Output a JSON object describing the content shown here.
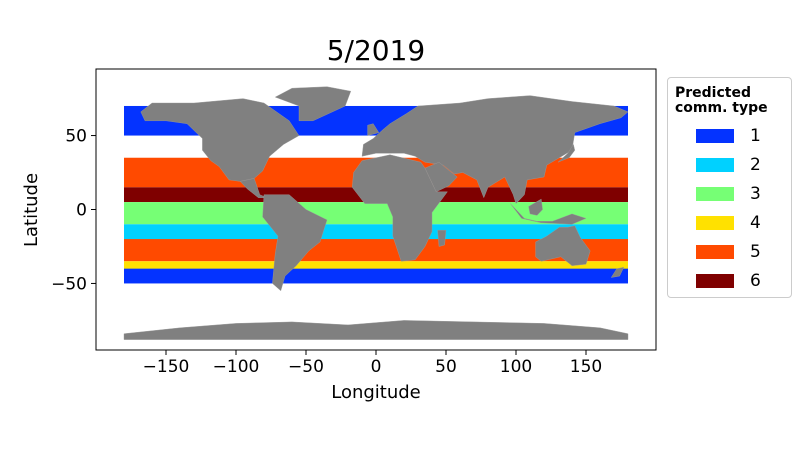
{
  "chart_data": {
    "type": "map",
    "title": "5/2019",
    "xlabel": "Longitude",
    "ylabel": "Latitude",
    "xlim": [
      -200,
      200
    ],
    "ylim": [
      -95,
      95
    ],
    "xticks": [
      -150,
      -100,
      -50,
      0,
      50,
      100,
      150
    ],
    "yticks": [
      -50,
      0,
      50
    ],
    "xtick_labels": [
      "−150",
      "−100",
      "−50",
      "0",
      "50",
      "100",
      "150"
    ],
    "ytick_labels": [
      "−50",
      "0",
      "50"
    ],
    "grid": false,
    "land_color": "#808080",
    "legend": {
      "title": "Predicted\ncomm. type",
      "placement": "right",
      "entries": [
        {
          "label": "1",
          "color": "#0433ff"
        },
        {
          "label": "2",
          "color": "#00d1ff"
        },
        {
          "label": "3",
          "color": "#76ff75"
        },
        {
          "label": "4",
          "color": "#ffe100"
        },
        {
          "label": "5",
          "color": "#ff4a00"
        },
        {
          "label": "6",
          "color": "#7f0000"
        }
      ]
    },
    "regions_by_latitude": [
      {
        "lat": [
          50,
          70
        ],
        "type": "1"
      },
      {
        "lat": [
          15,
          35
        ],
        "type": "5"
      },
      {
        "lat": [
          5,
          15
        ],
        "type": "6"
      },
      {
        "lat": [
          -10,
          5
        ],
        "type": "3"
      },
      {
        "lat": [
          -22,
          -10
        ],
        "type": "2"
      },
      {
        "lat": [
          -35,
          -20
        ],
        "type": "5"
      },
      {
        "lat": [
          -45,
          -35
        ],
        "type": "4"
      },
      {
        "lat": [
          -50,
          -40
        ],
        "type": "1"
      }
    ]
  }
}
